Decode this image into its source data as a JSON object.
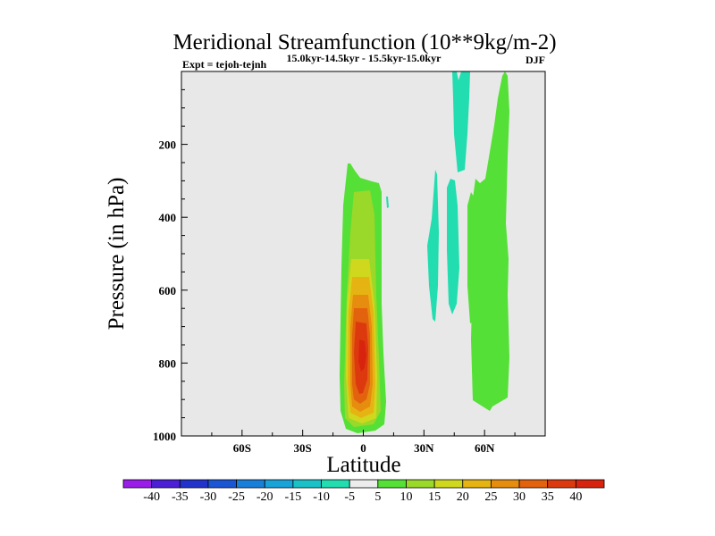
{
  "chart_data": {
    "type": "contour",
    "title": "Meridional Streamfunction (10**9kg/m-2)",
    "left_label": "Expt = tejoh-tejnh",
    "center_label": "15.0kyr-14.5kyr - 15.5kyr-15.0kyr",
    "right_label": "DJF",
    "xlabel": "Latitude",
    "ylabel": "Pressure (in hPa)",
    "xlim": [
      -90,
      90
    ],
    "ylim": [
      1000,
      0
    ],
    "x_ticks": [
      {
        "value": -60,
        "label": "60S"
      },
      {
        "value": -30,
        "label": "30S"
      },
      {
        "value": 0,
        "label": "0"
      },
      {
        "value": 30,
        "label": "30N"
      },
      {
        "value": 60,
        "label": "60N"
      }
    ],
    "y_ticks": [
      {
        "value": 200,
        "label": "200"
      },
      {
        "value": 400,
        "label": "400"
      },
      {
        "value": 600,
        "label": "600"
      },
      {
        "value": 800,
        "label": "800"
      },
      {
        "value": 1000,
        "label": "1000"
      }
    ],
    "background_color": "#e8e8e8",
    "colorbar": {
      "levels": [
        -40,
        -35,
        -30,
        -25,
        -20,
        -15,
        -10,
        -5,
        5,
        10,
        15,
        20,
        25,
        30,
        35,
        40
      ],
      "colors": [
        "#9a1de8",
        "#4b1fd6",
        "#2233cc",
        "#1a55d4",
        "#1a7fd8",
        "#1aa3d8",
        "#1ac2c8",
        "#22ddb0",
        "#ececec",
        "#54e036",
        "#9ad82a",
        "#d0d81e",
        "#e6b412",
        "#e68c0e",
        "#e2620e",
        "#dc3a0e",
        "#d8240e"
      ]
    },
    "regions": [
      {
        "name": "equatorial-cell",
        "max_value": 40,
        "center_lat": 0,
        "center_p": 780
      },
      {
        "name": "cell-30n-negative",
        "max_value": -5,
        "center_lat": 34,
        "center_p": 430
      },
      {
        "name": "cell-45n-negative",
        "max_value": -5,
        "center_lat": 47,
        "center_p": 160
      },
      {
        "name": "cell-60n-positive",
        "max_value": 5,
        "center_lat": 62,
        "center_p": 520
      }
    ]
  }
}
